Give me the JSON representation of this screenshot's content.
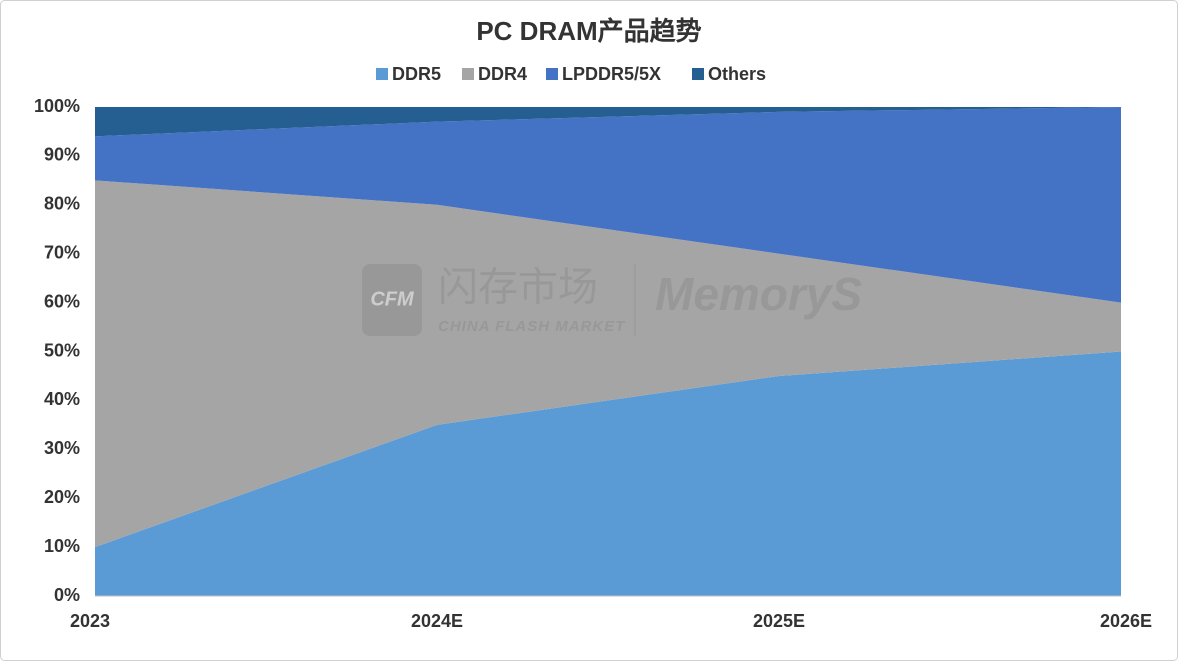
{
  "chart_data": {
    "type": "stacked_area",
    "title": "PC DRAM产品趋势",
    "categories": [
      "2023",
      "2024E",
      "2025E",
      "2026E"
    ],
    "series": [
      {
        "name": "DDR5",
        "color": "#5b9bd5",
        "values": [
          10,
          35,
          45,
          50
        ]
      },
      {
        "name": "DDR4",
        "color": "#a5a5a5",
        "values": [
          75,
          45,
          25,
          10
        ]
      },
      {
        "name": "LPDDR5/5X",
        "color": "#4472c4",
        "values": [
          9,
          17,
          29,
          40
        ]
      },
      {
        "name": "Others",
        "color": "#255e91",
        "values": [
          6,
          3,
          1,
          0
        ]
      }
    ],
    "ylim": [
      0,
      100
    ],
    "yticks": [
      {
        "value": 0,
        "label": "0%"
      },
      {
        "value": 10,
        "label": "10%"
      },
      {
        "value": 20,
        "label": "20%"
      },
      {
        "value": 30,
        "label": "30%"
      },
      {
        "value": 40,
        "label": "40%"
      },
      {
        "value": 50,
        "label": "50%"
      },
      {
        "value": 60,
        "label": "60%"
      },
      {
        "value": 70,
        "label": "70%"
      },
      {
        "value": 80,
        "label": "80%"
      },
      {
        "value": 90,
        "label": "90%"
      },
      {
        "value": 100,
        "label": "100%"
      }
    ],
    "legend": "top",
    "watermark": {
      "logo": "CFM",
      "cn": "闪存市场",
      "en": "CHINA FLASH MARKET",
      "brand": "MemoryS"
    }
  }
}
